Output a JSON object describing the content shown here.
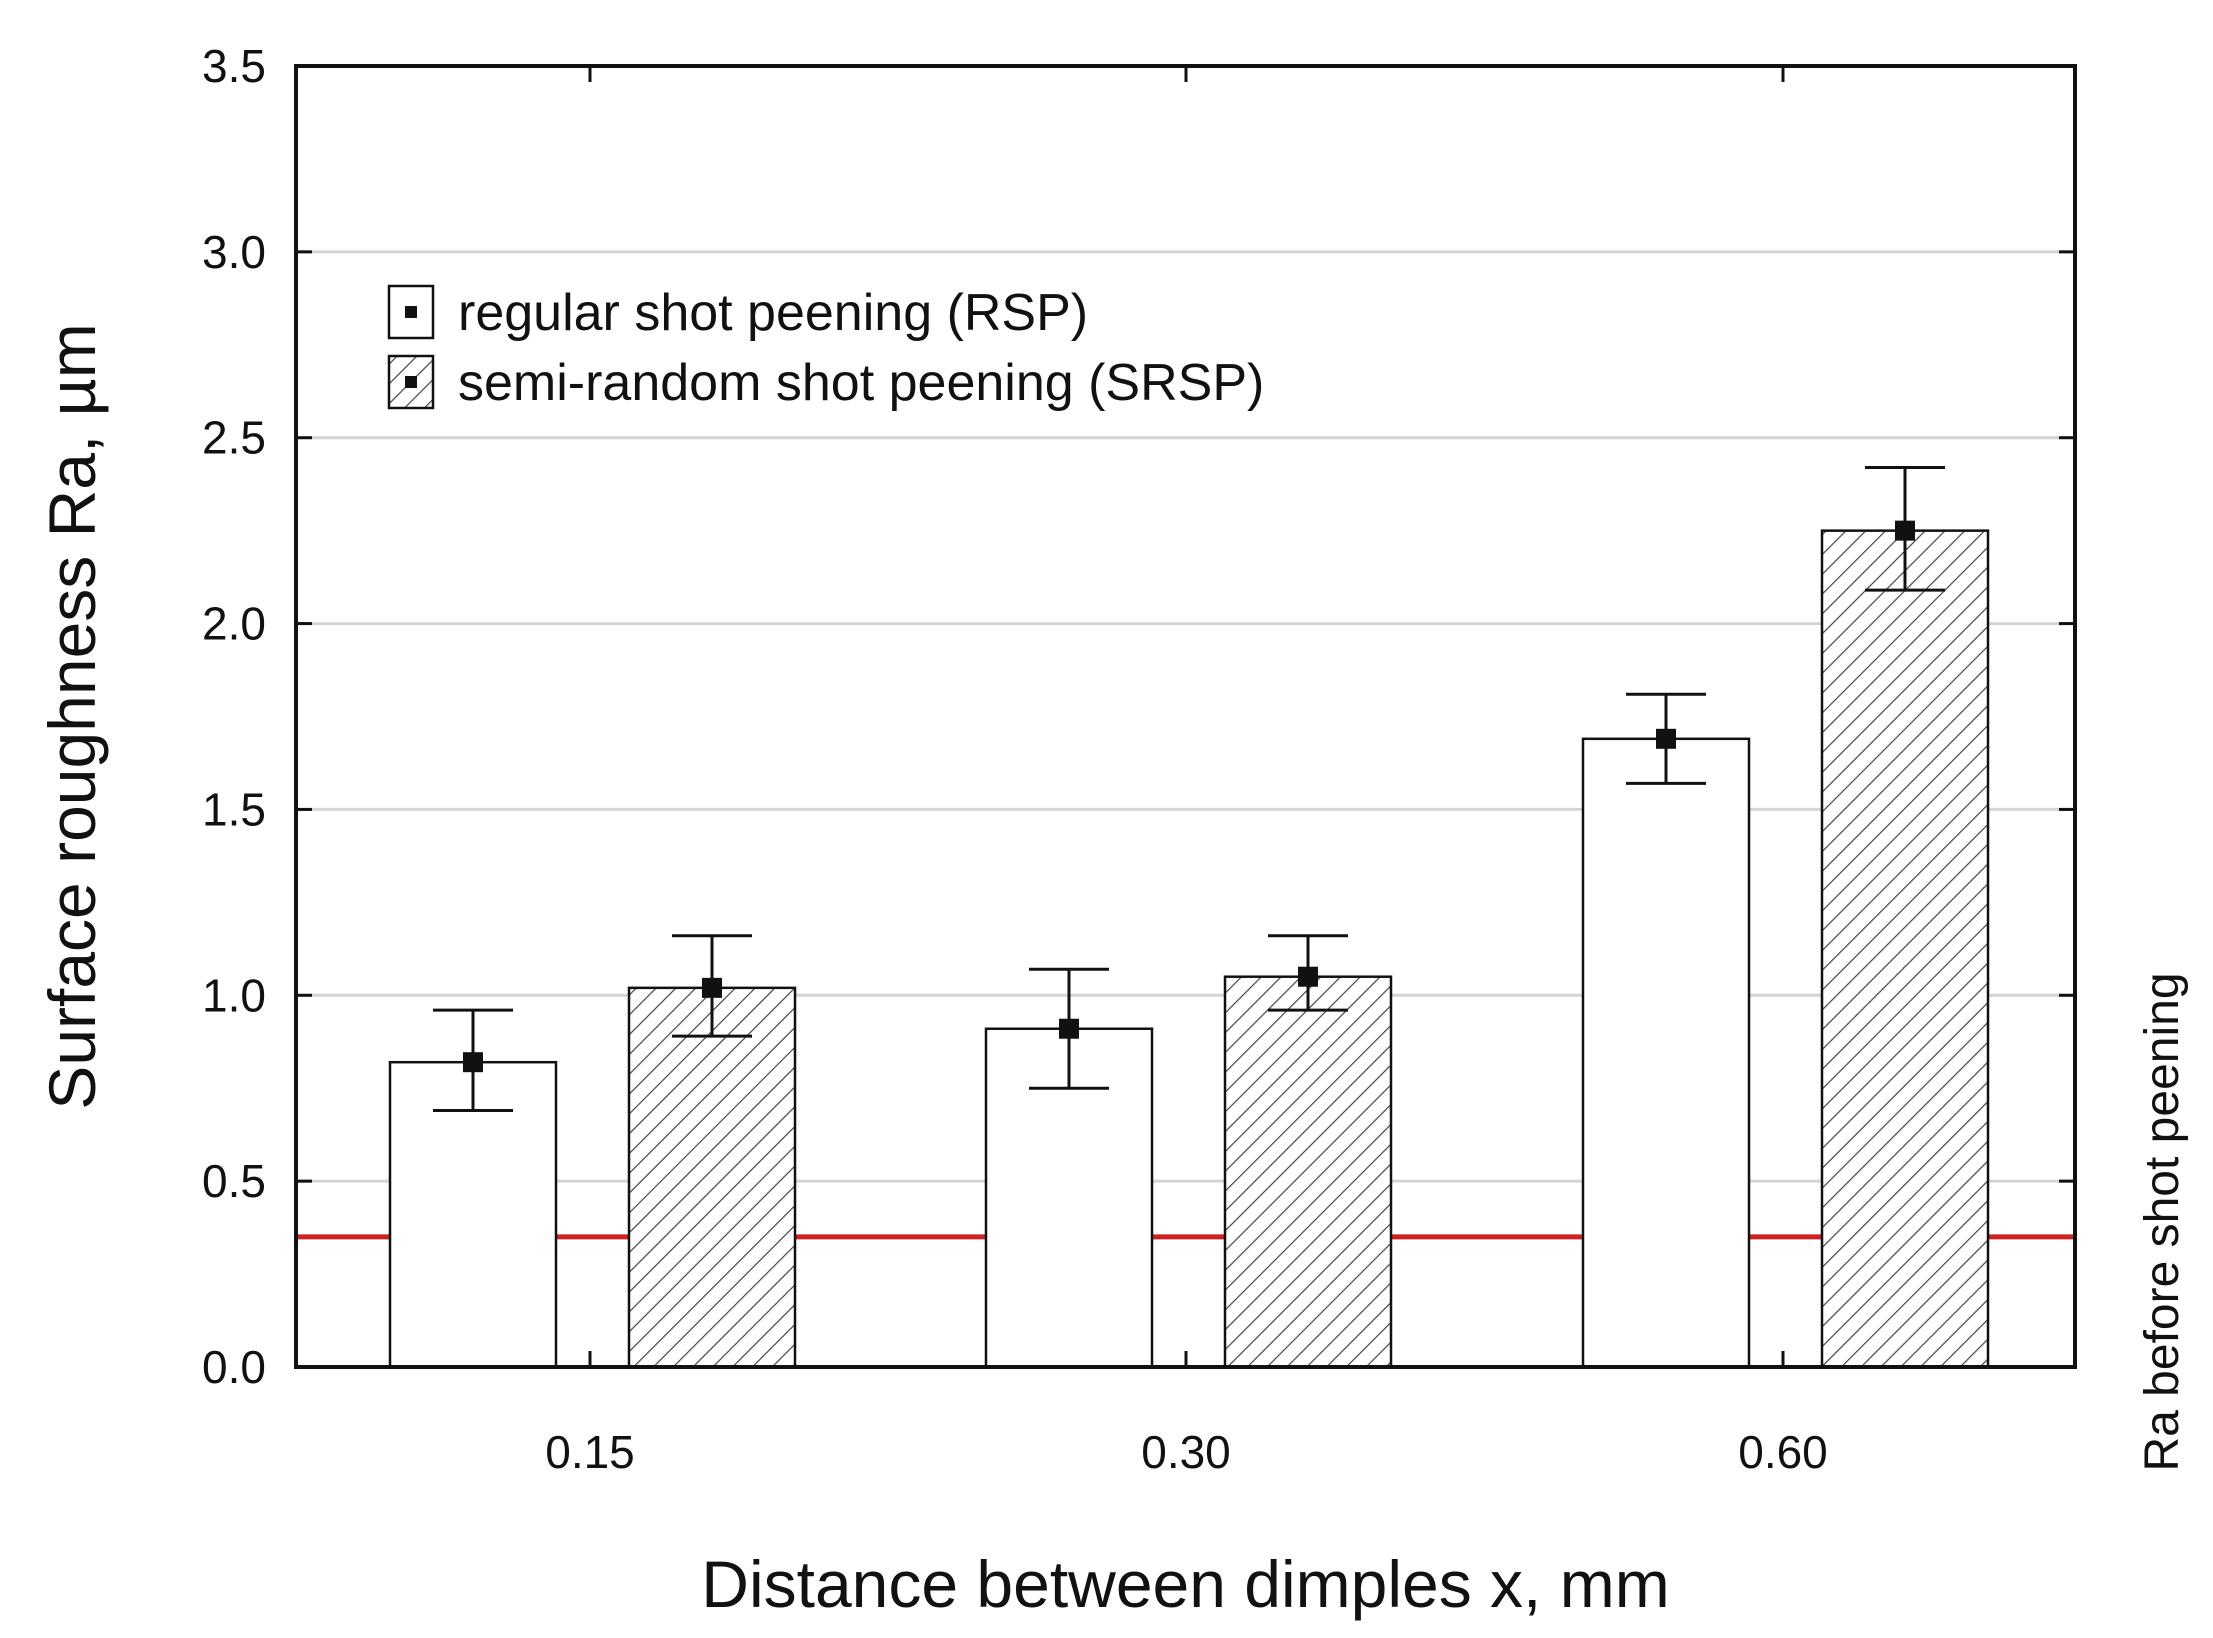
{
  "chart_data": {
    "type": "bar",
    "xlabel": "Distance between dimples x, mm",
    "ylabel": "Surface roughness Ra, µm",
    "ylim": [
      0,
      3.5
    ],
    "yticks": [
      "0.0",
      "0.5",
      "1.0",
      "1.5",
      "2.0",
      "2.5",
      "3.0",
      "3.5"
    ],
    "categories": [
      "0.15",
      "0.30",
      "0.60"
    ],
    "grid": true,
    "legend_position": "top-left",
    "series": [
      {
        "name": "regular shot peening (RSP)",
        "pattern": "white",
        "values": [
          0.82,
          0.91,
          1.69
        ],
        "error_low": [
          0.69,
          0.75,
          1.57
        ],
        "error_high": [
          0.96,
          1.07,
          1.81
        ]
      },
      {
        "name": "semi-random shot peening (SRSP)",
        "pattern": "hatched",
        "values": [
          1.02,
          1.05,
          2.25
        ],
        "error_low": [
          0.89,
          0.96,
          2.09
        ],
        "error_high": [
          1.16,
          1.16,
          2.42
        ]
      }
    ],
    "reference_line": {
      "label": "Ra before shot peening",
      "value": 0.35,
      "color": "#cc2222"
    },
    "colors": {
      "grid": "#d4d4d4",
      "axis": "#111111",
      "bar_fill": "#ffffff",
      "hatch": "#444444"
    }
  }
}
